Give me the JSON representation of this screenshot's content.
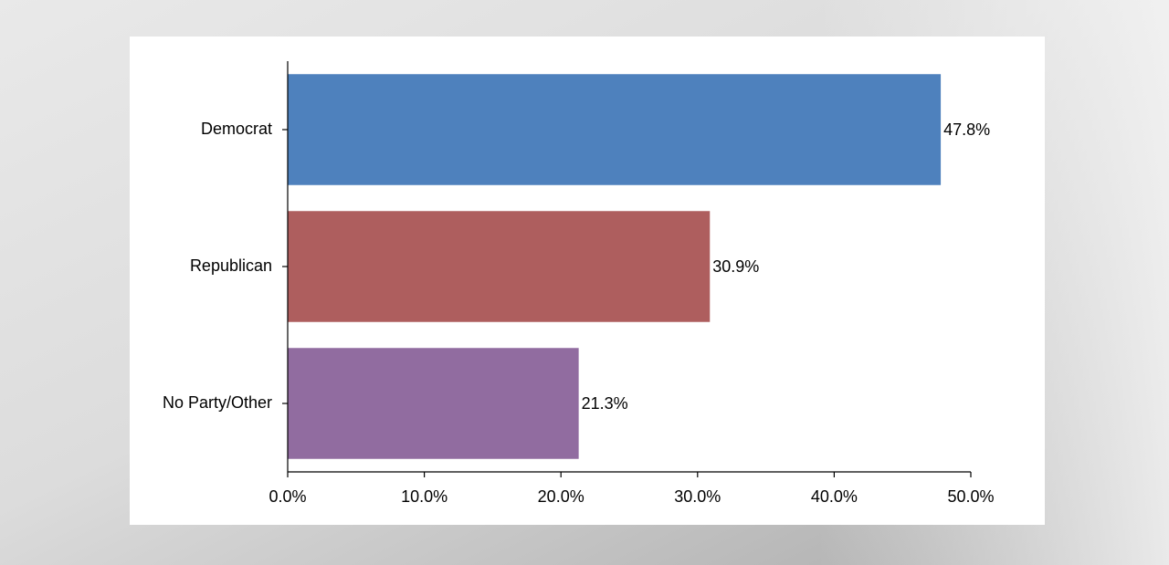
{
  "chart_data": {
    "type": "bar",
    "orientation": "horizontal",
    "categories": [
      "Democrat",
      "Republican",
      "No Party/Other"
    ],
    "values": [
      47.8,
      30.9,
      21.3
    ],
    "data_labels": [
      "47.8%",
      "30.9%",
      "21.3%"
    ],
    "colors": [
      "#4e81bd",
      "#ae5e5e",
      "#916ca0"
    ],
    "xlim": [
      0,
      50
    ],
    "xticks": [
      0,
      10,
      20,
      30,
      40,
      50
    ],
    "xtick_labels": [
      "0.0%",
      "10.0%",
      "20.0%",
      "30.0%",
      "40.0%",
      "50.0%"
    ],
    "grid": false,
    "legend": "none"
  }
}
